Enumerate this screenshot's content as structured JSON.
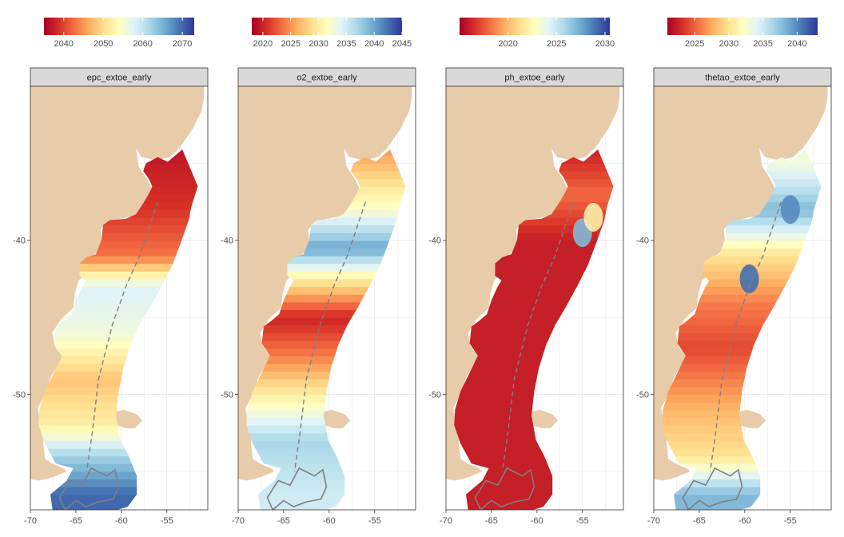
{
  "colors": {
    "land": "#e8cba8",
    "panel_bg": "#ffffff",
    "grid": "#e6e6e6",
    "strip_fill": "#d9d9d9",
    "strip_border": "#333333",
    "contour": "#7f7f7f",
    "palette_RdYlBu": [
      "#a50026",
      "#d73027",
      "#f46d43",
      "#fdae61",
      "#fee090",
      "#ffffbf",
      "#e0f3f8",
      "#abd9e9",
      "#74add1",
      "#4575b4",
      "#313695"
    ]
  },
  "chart_data": [
    {
      "type": "heatmap",
      "facet": "epc_extoe_early",
      "legend": {
        "min": 2035,
        "max": 2073,
        "ticks": [
          2040,
          2050,
          2060,
          2070
        ]
      },
      "xlim": [
        -70,
        -50.5
      ],
      "ylim": [
        -57.5,
        -30
      ],
      "xticks": [
        -70,
        -65,
        -60,
        -55
      ],
      "yticks": [
        -40,
        -50
      ],
      "grid": true,
      "legend_position": "top",
      "gradient_stops": [
        {
          "lat": -56.5,
          "value": 2070
        },
        {
          "lat": -54,
          "value": 2062
        },
        {
          "lat": -52,
          "value": 2052
        },
        {
          "lat": -49,
          "value": 2048
        },
        {
          "lat": -46,
          "value": 2056
        },
        {
          "lat": -43,
          "value": 2058
        },
        {
          "lat": -41,
          "value": 2043
        },
        {
          "lat": -38,
          "value": 2039
        },
        {
          "lat": -34.5,
          "value": 2037
        }
      ],
      "inset_patches": []
    },
    {
      "type": "heatmap",
      "facet": "o2_extoe_early",
      "legend": {
        "min": 2018,
        "max": 2045,
        "ticks": [
          2020,
          2025,
          2030,
          2035,
          2040,
          2045
        ]
      },
      "xlim": [
        -70,
        -50.5
      ],
      "ylim": [
        -57.5,
        -30
      ],
      "xticks": [
        -70,
        -65,
        -60,
        -55
      ],
      "yticks": [
        -40,
        -50
      ],
      "grid": true,
      "legend_position": "top",
      "gradient_stops": [
        {
          "lat": -56.5,
          "value": 2035
        },
        {
          "lat": -53,
          "value": 2037
        },
        {
          "lat": -50,
          "value": 2030
        },
        {
          "lat": -47.5,
          "value": 2024
        },
        {
          "lat": -45,
          "value": 2020
        },
        {
          "lat": -42.5,
          "value": 2030
        },
        {
          "lat": -40.5,
          "value": 2040
        },
        {
          "lat": -38,
          "value": 2032
        },
        {
          "lat": -34,
          "value": 2025
        }
      ],
      "inset_patches": []
    },
    {
      "type": "heatmap",
      "facet": "ph_extoe_early",
      "legend": {
        "min": 2015,
        "max": 2030.5,
        "ticks": [
          2020,
          2025,
          2030
        ]
      },
      "xlim": [
        -70,
        -50.5
      ],
      "ylim": [
        -57.5,
        -30
      ],
      "xticks": [
        -70,
        -65,
        -60,
        -55
      ],
      "yticks": [
        -40,
        -50
      ],
      "grid": true,
      "legend_position": "top",
      "gradient_stops": [
        {
          "lat": -57.5,
          "value": 2016
        },
        {
          "lat": -40,
          "value": 2016
        },
        {
          "lat": -37,
          "value": 2018
        },
        {
          "lat": -34,
          "value": 2016
        }
      ],
      "inset_patches": [
        {
          "lat": -39.5,
          "lon": -55,
          "value": 2027
        },
        {
          "lat": -38.5,
          "lon": -53.8,
          "value": 2022
        }
      ]
    },
    {
      "type": "heatmap",
      "facet": "thetao_extoe_early",
      "legend": {
        "min": 2021,
        "max": 2043,
        "ticks": [
          2025,
          2030,
          2035,
          2040
        ]
      },
      "xlim": [
        -70,
        -50.5
      ],
      "ylim": [
        -57.5,
        -30
      ],
      "xticks": [
        -70,
        -65,
        -60,
        -55
      ],
      "yticks": [
        -40,
        -50
      ],
      "grid": true,
      "legend_position": "top",
      "gradient_stops": [
        {
          "lat": -56.5,
          "value": 2038
        },
        {
          "lat": -54,
          "value": 2030
        },
        {
          "lat": -51,
          "value": 2028
        },
        {
          "lat": -47,
          "value": 2024
        },
        {
          "lat": -44,
          "value": 2026
        },
        {
          "lat": -41,
          "value": 2030
        },
        {
          "lat": -38,
          "value": 2038
        },
        {
          "lat": -35,
          "value": 2033
        }
      ],
      "inset_patches": [
        {
          "lat": -42.5,
          "lon": -59.5,
          "value": 2041
        },
        {
          "lat": -38,
          "lon": -55,
          "value": 2040
        }
      ]
    }
  ]
}
